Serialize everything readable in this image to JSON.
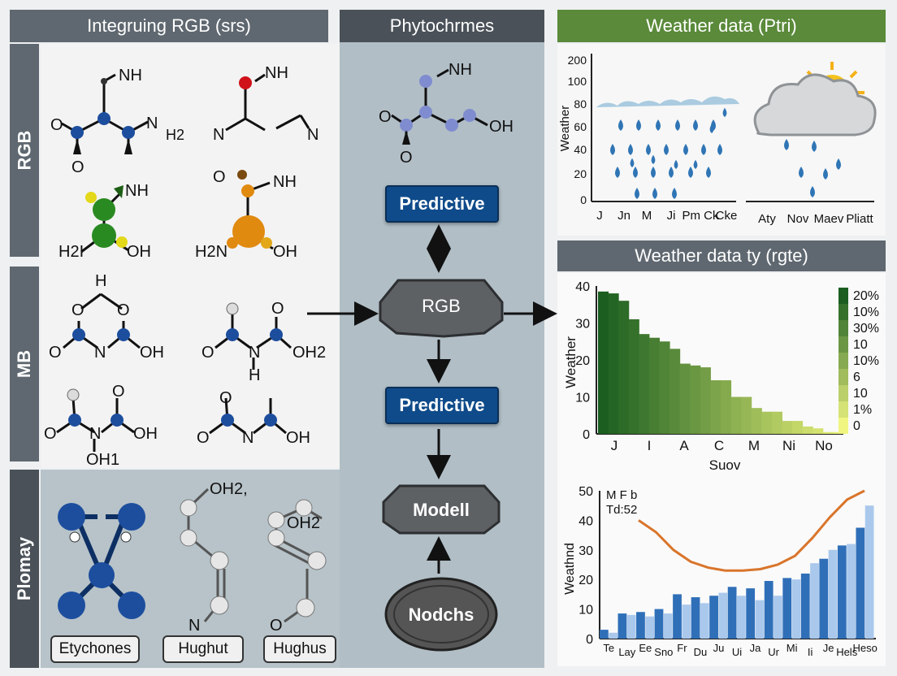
{
  "headers": {
    "left": "Integruing RGB (srs)",
    "middle": "Phytochrmes",
    "right_top": "Weather data (Ptri)",
    "right_mid": "Weather data ty (rgte)"
  },
  "side_tabs": [
    "RGB",
    "MB",
    "Plomay"
  ],
  "molecules": {
    "m1": [
      "NH",
      "O",
      "N",
      "H2",
      "O"
    ],
    "m2": [
      "NH",
      "N",
      "N"
    ],
    "m3": [
      "NH",
      "H2I",
      "OH"
    ],
    "m4": [
      "O",
      "NH",
      "H2N",
      "OH"
    ],
    "m5": [
      "H",
      "O",
      "O",
      "O",
      "N",
      "OH"
    ],
    "m6": [
      "O",
      "O",
      "N",
      "OH2",
      "H"
    ],
    "m7": [
      "O",
      "O",
      "N",
      "OH",
      "OH1"
    ],
    "m8": [
      "O",
      "O",
      "N",
      "OH"
    ],
    "m9": [
      "OH2,",
      "N"
    ],
    "m10": [
      "OH2",
      "O"
    ],
    "mid": [
      "NH",
      "O",
      "OH",
      "O"
    ]
  },
  "bottom_labels": [
    "Etychones",
    "Hughut",
    "Hughus"
  ],
  "flow": {
    "predictive_top": "Predictive",
    "rgb": "RGB",
    "predictive_mid": "Predictive",
    "model": "Modell",
    "nodes": "Nodchs"
  },
  "colors": {
    "header_gray": "#5f6870",
    "header_dark": "#4a5158",
    "header_green": "#5a8a3a",
    "predictive_blue": "#0f4b8a"
  },
  "chart_data": [
    {
      "type": "line",
      "title": "Weather data (Ptri)",
      "ylabel": "Weather",
      "yticks": [
        "200",
        "100",
        "80",
        "60",
        "40",
        "20",
        "0"
      ],
      "xticks_left": [
        "J",
        "Jn",
        "M",
        "Ji",
        "Pm Ck",
        "Cke"
      ],
      "xticks_right": [
        "Aty",
        "Nov",
        "Maev",
        "Pliatt"
      ]
    },
    {
      "type": "bar",
      "title": "Weather data ty (rgte)",
      "ylabel": "Weather",
      "xlabel": "Suov",
      "ylim": [
        0,
        40
      ],
      "yticks": [
        "0",
        "10",
        "20",
        "30",
        "40"
      ],
      "xticks": [
        "J",
        "I",
        "A",
        "C",
        "M",
        "Ni",
        "No"
      ],
      "values": [
        38.5,
        38,
        36,
        31,
        27,
        26,
        25,
        23,
        19,
        18.5,
        18,
        14.5,
        14.5,
        10,
        10,
        7,
        6,
        6,
        3.5,
        3.5,
        2,
        1.5,
        0.5,
        0.5
      ],
      "legend": [
        "20%",
        "10%",
        "30%",
        "10",
        "10%",
        "6",
        "10",
        "1%",
        "0"
      ]
    },
    {
      "type": "bar",
      "ylabel": "Weathnd",
      "ylim": [
        0,
        50
      ],
      "yticks": [
        "0",
        "10",
        "20",
        "30",
        "40",
        "50"
      ],
      "annotation": [
        "M F b",
        "Td:52"
      ],
      "xticks": [
        "Te",
        "Lay",
        "Ee",
        "Sno",
        "Fr",
        "Du",
        "Ju",
        "Ui",
        "Ja",
        "Ur",
        "Mi",
        "Ii",
        "Je",
        "Hels",
        "Heso"
      ],
      "series": [
        {
          "values": [
            3,
            8.5,
            9,
            10,
            15,
            14,
            14.5,
            17.5,
            17,
            19.5,
            20.5,
            22,
            27,
            31.5,
            37.5
          ]
        },
        {
          "values": [
            2,
            8,
            7.5,
            8.5,
            11.5,
            12,
            15.5,
            14.5,
            13,
            14.5,
            20,
            25.5,
            30,
            32,
            45
          ]
        }
      ],
      "curve": [
        40,
        36,
        30,
        26,
        24,
        23,
        23,
        23.5,
        25,
        28,
        34,
        41,
        47,
        50
      ]
    }
  ]
}
